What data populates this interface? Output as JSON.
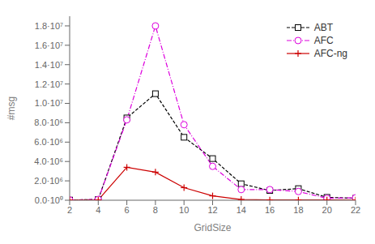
{
  "chart_data": {
    "type": "line",
    "x": [
      2,
      4,
      6,
      8,
      10,
      12,
      14,
      16,
      18,
      20,
      22
    ],
    "series": [
      {
        "name": "ABT",
        "color": "#000000",
        "marker": "square",
        "line_style": "dashed",
        "values": [
          20000,
          80000,
          8500000,
          11000000,
          6500000,
          4300000,
          1700000,
          1000000,
          1200000,
          300000,
          200000
        ]
      },
      {
        "name": "AFC",
        "color": "#dd00dd",
        "marker": "circle",
        "line_style": "dashdot",
        "values": [
          20000,
          80000,
          8300000,
          18000000,
          7800000,
          3500000,
          1100000,
          1100000,
          900000,
          200000,
          250000
        ]
      },
      {
        "name": "AFC-ng",
        "color": "#cc0000",
        "marker": "plus",
        "line_style": "solid",
        "values": [
          20000,
          30000,
          3400000,
          2900000,
          1300000,
          450000,
          80000,
          30000,
          30000,
          30000,
          20000
        ]
      }
    ],
    "xlabel": "GridSize",
    "ylabel": "#msg",
    "xlim": [
      2,
      22
    ],
    "xticks": [
      2,
      4,
      6,
      8,
      10,
      12,
      14,
      16,
      18,
      20,
      22
    ],
    "ylim": [
      0,
      19000000
    ],
    "yticks": [
      {
        "value": 0,
        "label": "0.0·10⁰"
      },
      {
        "value": 2000000,
        "label": "2.0·10⁶"
      },
      {
        "value": 4000000,
        "label": "4.0·10⁶"
      },
      {
        "value": 6000000,
        "label": "6.0·10⁶"
      },
      {
        "value": 8000000,
        "label": "8.0·10⁶"
      },
      {
        "value": 10000000,
        "label": "1.0·10⁷"
      },
      {
        "value": 12000000,
        "label": "1.2·10⁷"
      },
      {
        "value": 14000000,
        "label": "1.4·10⁷"
      },
      {
        "value": 16000000,
        "label": "1.6·10⁷"
      },
      {
        "value": 18000000,
        "label": "1.8·10⁷"
      }
    ],
    "grid": false,
    "legend": "upper right"
  }
}
